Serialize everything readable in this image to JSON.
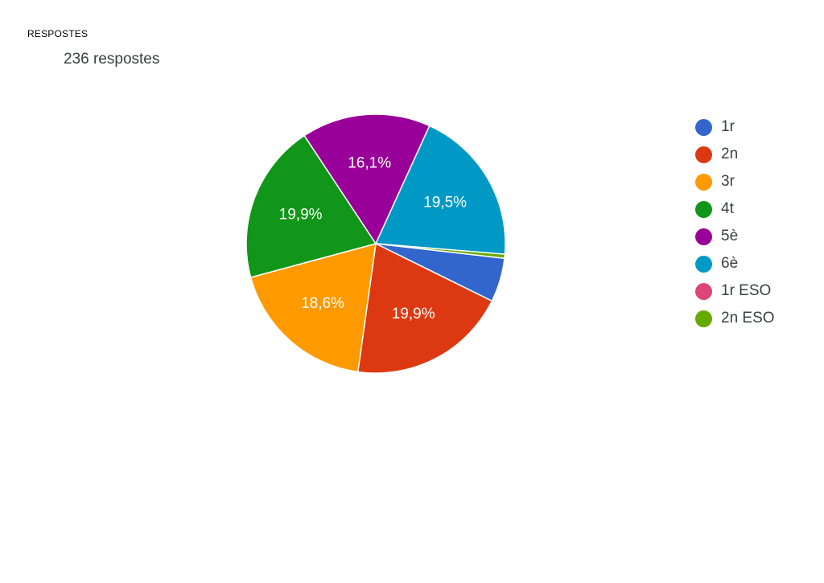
{
  "header": {
    "section_label": "RESPOSTES",
    "response_count": "236 respostes"
  },
  "chart_data": {
    "type": "pie",
    "title": "",
    "total": 236,
    "legend_position": "right",
    "slices": [
      {
        "label": "1r",
        "value": 5.5,
        "display": "",
        "color": "#3366cc"
      },
      {
        "label": "2n",
        "value": 19.9,
        "display": "19,9%",
        "color": "#dc3912"
      },
      {
        "label": "3r",
        "value": 18.6,
        "display": "18,6%",
        "color": "#ff9900"
      },
      {
        "label": "4t",
        "value": 19.9,
        "display": "19,9%",
        "color": "#109618"
      },
      {
        "label": "5è",
        "value": 16.1,
        "display": "16,1%",
        "color": "#990099"
      },
      {
        "label": "6è",
        "value": 19.5,
        "display": "19,5%",
        "color": "#0099c6"
      },
      {
        "label": "1r ESO",
        "value": 0.0,
        "display": "",
        "color": "#dd4477"
      },
      {
        "label": "2n ESO",
        "value": 0.5,
        "display": "",
        "color": "#66aa00"
      }
    ]
  }
}
